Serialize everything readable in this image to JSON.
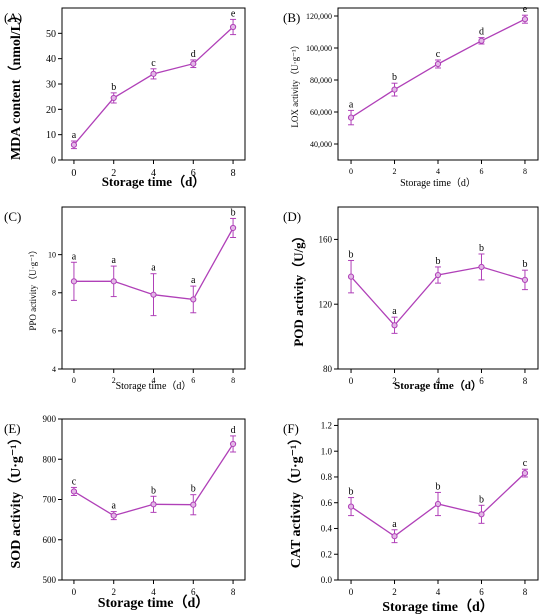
{
  "colors": {
    "line": "#b040b8",
    "marker_fill": "#e2b8e6",
    "axis": "#000000"
  },
  "chart_data": [
    {
      "type": "line",
      "panel_label": "(A)",
      "xlabel": "Storage time（d）",
      "ylabel": "MDA content（nmol/L）",
      "x": [
        0,
        2,
        4,
        6,
        8
      ],
      "xlim": [
        -0.6,
        8.6
      ],
      "ylim": [
        0,
        60
      ],
      "yticks": [
        "0",
        "10",
        "20",
        "30",
        "40",
        "50"
      ],
      "ytick_values": [
        0,
        10,
        20,
        30,
        40,
        50
      ],
      "series": [
        {
          "values": [
            6,
            24.5,
            34,
            38,
            52.5
          ],
          "errors": [
            1.5,
            2,
            2,
            1.5,
            3
          ],
          "letters": [
            "a",
            "b",
            "c",
            "d",
            "e"
          ]
        }
      ]
    },
    {
      "type": "line",
      "panel_label": "(B)",
      "xlabel": "Storage time（d）",
      "ylabel": "LOX activity（U·g⁻¹）",
      "x": [
        0,
        2,
        4,
        6,
        8
      ],
      "xlim": [
        -0.6,
        8.6
      ],
      "ylim": [
        30000,
        125000
      ],
      "yticks": [
        "40,000",
        "60,000",
        "80,000",
        "100,000",
        "120,000"
      ],
      "ytick_values": [
        40000,
        60000,
        80000,
        100000,
        120000
      ],
      "series": [
        {
          "values": [
            56500,
            74000,
            90000,
            104500,
            118000
          ],
          "errors": [
            4500,
            4000,
            2500,
            2000,
            2500
          ],
          "letters": [
            "a",
            "b",
            "c",
            "d",
            "e"
          ]
        }
      ]
    },
    {
      "type": "line",
      "panel_label": "(C)",
      "xlabel": "Storage time（d）",
      "ylabel": "PPO activity（U·g⁻¹）",
      "x": [
        0,
        2,
        4,
        6,
        8
      ],
      "xlim": [
        -0.6,
        8.6
      ],
      "ylim": [
        4,
        12.5
      ],
      "yticks": [
        "4",
        "6",
        "8",
        "10"
      ],
      "ytick_values": [
        4,
        6,
        8,
        10
      ],
      "series": [
        {
          "values": [
            8.6,
            8.6,
            7.9,
            7.65,
            11.4
          ],
          "errors": [
            1,
            0.8,
            1.1,
            0.7,
            0.5
          ],
          "letters": [
            "a",
            "a",
            "a",
            "a",
            "b"
          ]
        }
      ]
    },
    {
      "type": "line",
      "panel_label": "(D)",
      "xlabel": "Storage time（d）",
      "ylabel": "POD activity（U/g）",
      "x": [
        0,
        2,
        4,
        6,
        8
      ],
      "xlim": [
        -0.6,
        8.6
      ],
      "ylim": [
        80,
        180
      ],
      "yticks": [
        "80",
        "120",
        "160"
      ],
      "ytick_values": [
        80,
        120,
        160
      ],
      "series": [
        {
          "values": [
            137,
            107,
            138,
            143,
            135
          ],
          "errors": [
            10,
            5,
            5,
            8,
            6
          ],
          "letters": [
            "b",
            "a",
            "b",
            "b",
            "b"
          ]
        }
      ]
    },
    {
      "type": "line",
      "panel_label": "(E)",
      "xlabel": "Storage time（d）",
      "ylabel": "SOD activity（U·g⁻¹）",
      "x": [
        0,
        2,
        4,
        6,
        8
      ],
      "xlim": [
        -0.6,
        8.6
      ],
      "ylim": [
        500,
        900
      ],
      "yticks": [
        "500",
        "600",
        "700",
        "800",
        "900"
      ],
      "ytick_values": [
        500,
        600,
        700,
        800,
        900
      ],
      "series": [
        {
          "values": [
            720,
            660,
            688,
            687,
            838
          ],
          "errors": [
            10,
            10,
            20,
            25,
            20
          ],
          "letters": [
            "c",
            "a",
            "b",
            "b",
            "d"
          ]
        }
      ]
    },
    {
      "type": "line",
      "panel_label": "(F)",
      "xlabel": "Storage time（d）",
      "ylabel": "CAT activity（U·g⁻¹）",
      "x": [
        0,
        2,
        4,
        6,
        8
      ],
      "xlim": [
        -0.6,
        8.6
      ],
      "ylim": [
        0,
        1.25
      ],
      "yticks": [
        "0.0",
        "0.2",
        "0.4",
        "0.6",
        "0.8",
        "1.0",
        "1.2"
      ],
      "ytick_values": [
        0,
        0.2,
        0.4,
        0.6,
        0.8,
        1.0,
        1.2
      ],
      "series": [
        {
          "values": [
            0.57,
            0.34,
            0.59,
            0.51,
            0.83
          ],
          "errors": [
            0.07,
            0.05,
            0.09,
            0.07,
            0.03
          ],
          "letters": [
            "b",
            "a",
            "b",
            "b",
            "c"
          ]
        }
      ]
    }
  ]
}
